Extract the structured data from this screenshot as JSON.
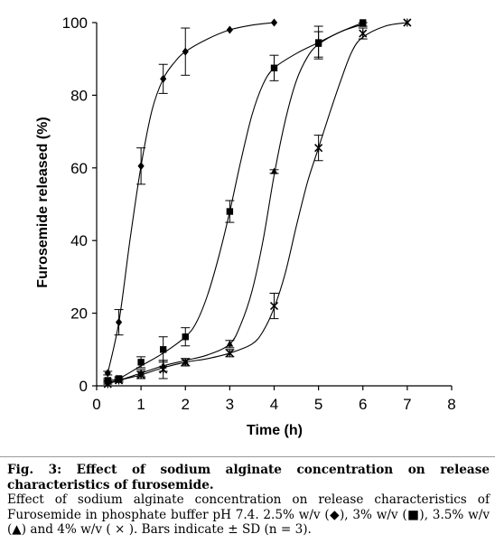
{
  "chart_data": {
    "type": "line",
    "title": "",
    "xlabel": "Time (h)",
    "ylabel": "Furosemide released (%)",
    "xlim": [
      0,
      8
    ],
    "ylim": [
      0,
      100
    ],
    "xticks": [
      0,
      1,
      2,
      3,
      4,
      5,
      6,
      7,
      8
    ],
    "yticks": [
      0,
      20,
      40,
      60,
      80,
      100
    ],
    "grid": false,
    "series": [
      {
        "marker": "diamond",
        "x": [
          0.25,
          0.5,
          1,
          1.5,
          2,
          3,
          4
        ],
        "y": [
          3.5,
          17.5,
          60.5,
          84.5,
          92,
          98,
          100
        ],
        "error": [
          0.5,
          3.5,
          5,
          4,
          6.5,
          0,
          0
        ]
      },
      {
        "marker": "square",
        "x": [
          0.25,
          0.5,
          1,
          1.5,
          2,
          3,
          4,
          5,
          6
        ],
        "y": [
          1.5,
          2,
          6.5,
          10,
          13.5,
          48,
          87.5,
          94.5,
          100
        ],
        "error": [
          0.5,
          0.5,
          1.5,
          3.5,
          2.5,
          3,
          3.5,
          4.5,
          0
        ]
      },
      {
        "marker": "triangle",
        "x": [
          0.25,
          0.5,
          1,
          1.5,
          2,
          3,
          4,
          5,
          6
        ],
        "y": [
          1,
          1.5,
          3.5,
          5.5,
          6.5,
          11.5,
          59,
          94,
          99.5
        ],
        "error": [
          0.5,
          0.5,
          1,
          1.5,
          1,
          1,
          0.5,
          3.5,
          0.5
        ]
      },
      {
        "marker": "cross",
        "x": [
          0.25,
          0.5,
          1,
          1.5,
          2,
          3,
          4,
          5,
          6,
          7
        ],
        "y": [
          0.5,
          1.5,
          3,
          4.5,
          6.5,
          9,
          22,
          65.5,
          97,
          100
        ],
        "error": [
          0.5,
          0.5,
          1,
          2.5,
          1,
          1,
          3.5,
          3.5,
          1.5,
          0
        ]
      }
    ],
    "curves": [
      {
        "x": [
          0.25,
          0.5,
          0.75,
          1,
          1.25,
          1.5,
          1.75,
          2,
          2.5,
          3,
          3.5,
          4
        ],
        "y": [
          3.5,
          17.5,
          40,
          60.5,
          76,
          84.5,
          89,
          92,
          95.5,
          98,
          99.3,
          100
        ]
      },
      {
        "x": [
          0.25,
          0.5,
          1,
          1.5,
          2,
          2.25,
          2.5,
          2.75,
          3,
          3.25,
          3.5,
          3.75,
          4,
          4.5,
          5,
          5.5,
          6
        ],
        "y": [
          1.5,
          2,
          5.5,
          9,
          13.5,
          17.5,
          25,
          35.5,
          48,
          62,
          74.5,
          83,
          87.5,
          91.5,
          94.5,
          97.5,
          100
        ]
      },
      {
        "x": [
          0.25,
          0.5,
          1,
          1.5,
          2,
          2.5,
          3,
          3.25,
          3.5,
          3.75,
          4,
          4.25,
          4.5,
          4.75,
          5,
          5.5,
          6
        ],
        "y": [
          1,
          1.5,
          3.5,
          5.5,
          7,
          8.5,
          11.5,
          17,
          26,
          40,
          58,
          73,
          84,
          90.5,
          94,
          97.5,
          99.5
        ]
      },
      {
        "x": [
          0.25,
          0.5,
          1,
          1.5,
          2,
          2.5,
          3,
          3.5,
          3.75,
          4,
          4.25,
          4.5,
          4.75,
          5,
          5.25,
          5.5,
          5.75,
          6,
          6.5,
          7
        ],
        "y": [
          0.5,
          1.5,
          3,
          5,
          6.5,
          7.5,
          9,
          11.5,
          15,
          21.5,
          31,
          44,
          56,
          65.5,
          75,
          84,
          92,
          96,
          99,
          100
        ]
      }
    ]
  },
  "caption": {
    "title": "Fig. 3: Effect of sodium alginate concentration on release characteristics of furosemide.",
    "body": "Effect of sodium alginate concentration on release characteristics of Furosemide in phosphate buffer pH 7.4. 2.5% w/v (◆), 3% w/v (■), 3.5% w/v (▲) and 4% w/v ( × ). Bars indicate ± SD (n = 3)."
  }
}
